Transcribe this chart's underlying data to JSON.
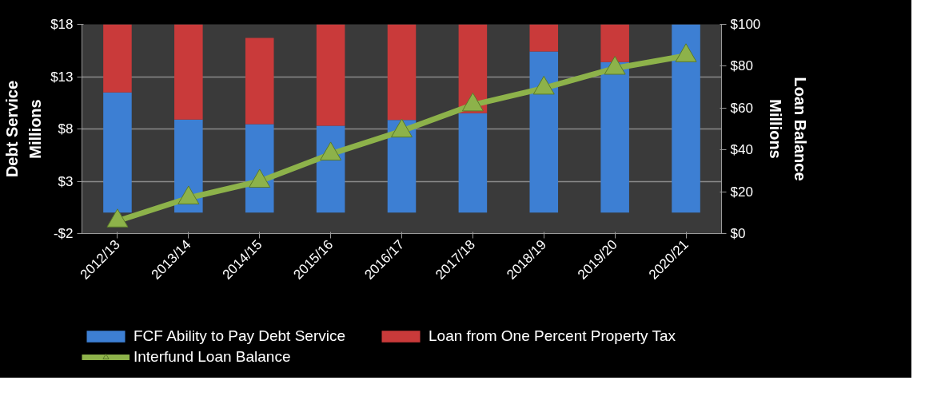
{
  "chart_data": {
    "type": "bar",
    "stacked": true,
    "ylabel": "Debt Service",
    "y2label": "Loan Balance",
    "annotations": [
      "Millions",
      "Millions"
    ],
    "categories": [
      "2012/13",
      "2013/14",
      "2014/15",
      "2015/16",
      "2016/17",
      "2017/18",
      "2018/19",
      "2019/20",
      "2020/21"
    ],
    "series": [
      {
        "name": "FCF Ability to Pay Debt Service",
        "color": "#3d7fd3",
        "values": [
          11.5,
          8.9,
          8.45,
          8.3,
          8.85,
          9.5,
          15.4,
          14.4,
          18
        ]
      },
      {
        "name": "Loan from One Percent Property Tax",
        "color": "#c93a3a",
        "values": [
          6.5,
          9.1,
          8.25,
          9.7,
          9.15,
          8.5,
          2.6,
          3.6,
          0
        ]
      },
      {
        "name": "Interfund Loan Balance",
        "type": "line",
        "axis": "y2",
        "color": "#8db24a",
        "marker": "triangle",
        "values": [
          6,
          17,
          25,
          38,
          49,
          61.5,
          69.5,
          79,
          85
        ]
      }
    ],
    "ylim": [
      -2,
      18
    ],
    "yticks": [
      {
        "value": -2,
        "label": "-$2"
      },
      {
        "value": 3,
        "label": "$3"
      },
      {
        "value": 8,
        "label": "$8"
      },
      {
        "value": 13,
        "label": "$13"
      },
      {
        "value": 18,
        "label": "$18"
      }
    ],
    "y2lim": [
      0,
      100
    ],
    "y2ticks": [
      {
        "value": 0,
        "label": "$0"
      },
      {
        "value": 20,
        "label": "$20"
      },
      {
        "value": 40,
        "label": "$40"
      },
      {
        "value": 60,
        "label": "$60"
      },
      {
        "value": 80,
        "label": "$80"
      },
      {
        "value": 100,
        "label": "$100"
      }
    ],
    "grid": "y",
    "legend": "bottom"
  }
}
